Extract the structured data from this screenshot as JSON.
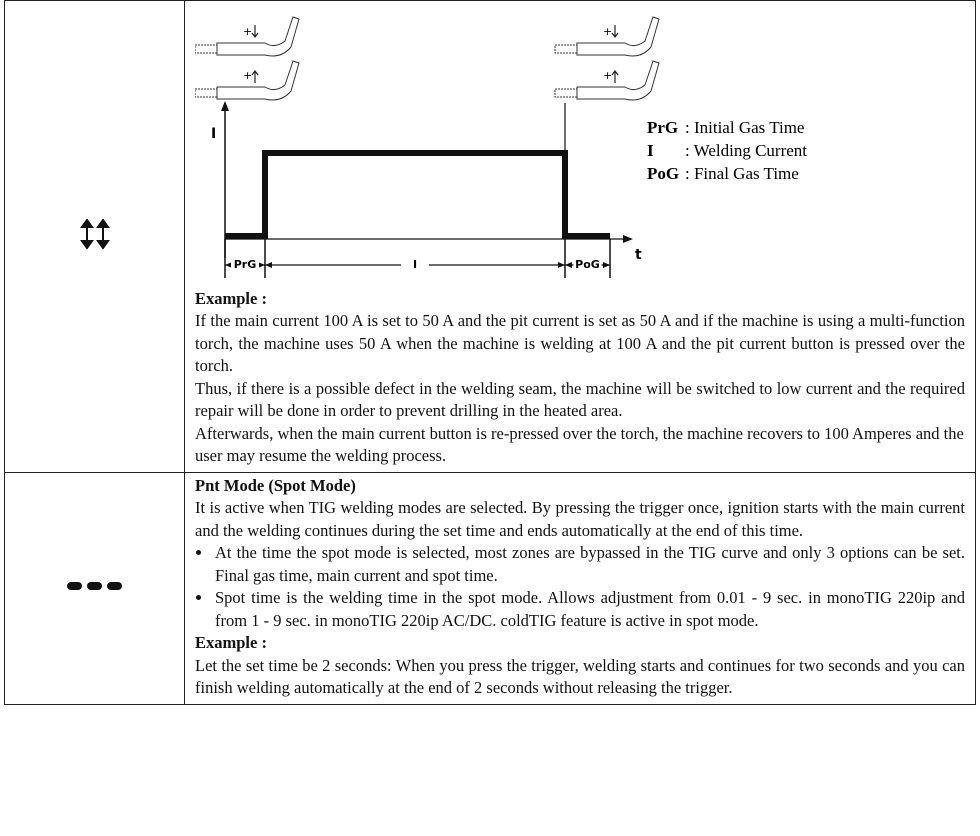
{
  "table": {
    "rows": [
      {
        "diagram": {
          "axis_y": "I",
          "axis_x": "t",
          "segments": [
            "PrG",
            "I",
            "PoG"
          ],
          "legend": [
            {
              "abbr": "PrG",
              "desc": ": Initial Gas Time"
            },
            {
              "abbr": "I",
              "desc": ": Welding Current"
            },
            {
              "abbr": "PoG",
              "desc": ": Final Gas Time"
            }
          ]
        },
        "example_heading": "Example :",
        "paragraphs": [
          "If the main current 100 A is set to 50 A and the pit current is set as 50 A and if the machine is using a multi-function torch, the machine uses 50 A when the machine is welding at 100 A and the pit current button is pressed over the torch.",
          "Thus, if there is a possible defect in the welding seam, the machine will be switched to low current and the required repair will be done in order to prevent drilling in the heated area.",
          "Afterwards, when the main current button is re-pressed over the torch, the machine recovers to 100 Amperes and the user may resume the welding process."
        ]
      },
      {
        "heading": "Pnt Mode (Spot Mode)",
        "intro": "It is active when TIG welding modes are selected. By pressing the trigger once, ignition starts with the main current and the welding continues during the set time and ends automatically at the end of this time.",
        "bullets": [
          "At the time the spot mode is selected, most zones are bypassed in the TIG curve and only 3 options can be set. Final gas time, main current and spot time.",
          "Spot time is the welding time in the spot mode. Allows adjustment from 0.01 - 9 sec. in monoTIG 220ip and from 1 - 9 sec. in monoTIG 220ip AC/DC. coldTIG feature is active in spot mode."
        ],
        "example_heading": "Example :",
        "example": "Let the set time be 2 seconds: When you press the trigger, welding starts and continues for two seconds and you can finish welding automatically at the end of 2 seconds without releasing the trigger."
      }
    ]
  }
}
